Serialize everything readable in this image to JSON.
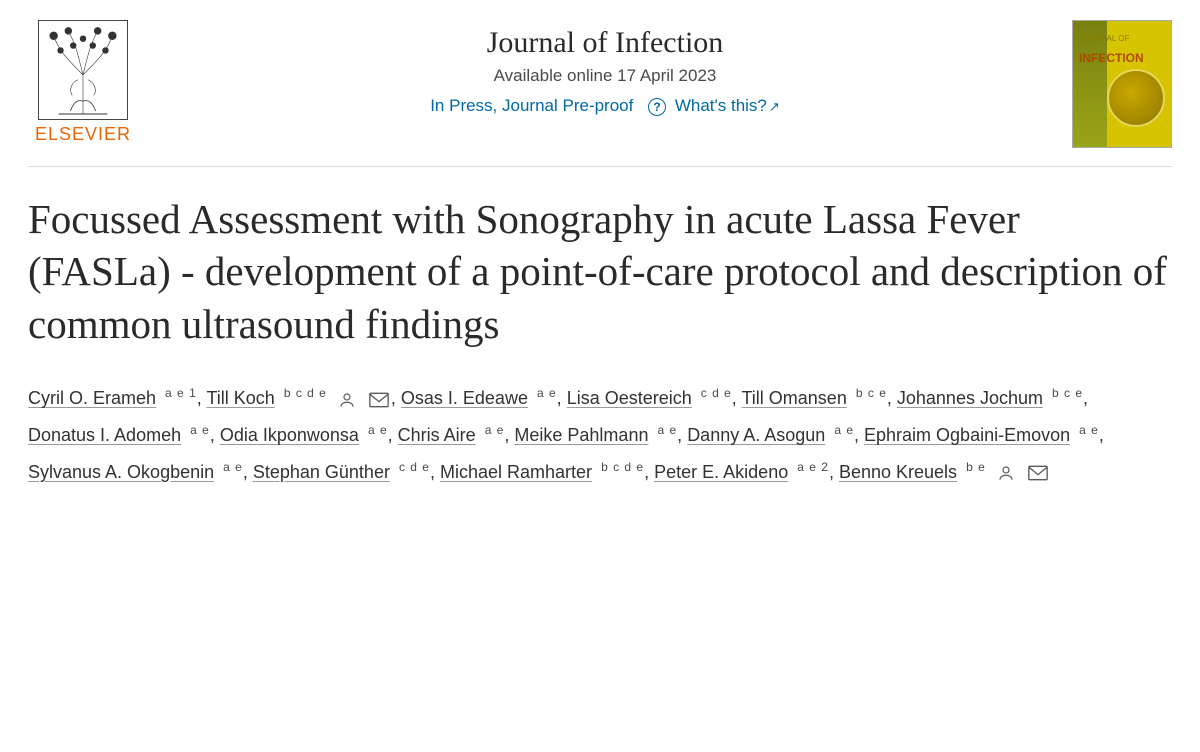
{
  "publisher": {
    "name": "ELSEVIER",
    "brand_color": "#eb6500"
  },
  "journal": {
    "name": "Journal of Infection",
    "available_online": "Available online 17 April 2023",
    "press_status": "In Press, Journal Pre-proof",
    "help_label": "What's this?"
  },
  "cover": {
    "bg_color": "#d7c400",
    "small_label": "JOURNAL OF",
    "big_label": "INFECTION"
  },
  "article": {
    "title": "Focussed Assessment with Sonography in acute Lassa Fever (FASLa) - development of a point-of-care protocol and description of common ultrasound findings"
  },
  "authors": [
    {
      "name": "Cyril O. Erameh",
      "affil": "a e 1"
    },
    {
      "name": "Till Koch",
      "affil": "b c d e",
      "corresponding": true
    },
    {
      "name": "Osas I. Edeawe",
      "affil": "a e"
    },
    {
      "name": "Lisa Oestereich",
      "affil": "c d e"
    },
    {
      "name": "Till Omansen",
      "affil": "b c e"
    },
    {
      "name": "Johannes Jochum",
      "affil": "b c e"
    },
    {
      "name": "Donatus I. Adomeh",
      "affil": "a e"
    },
    {
      "name": "Odia Ikponwonsa",
      "affil": "a e"
    },
    {
      "name": "Chris Aire",
      "affil": "a e"
    },
    {
      "name": "Meike Pahlmann",
      "affil": "a e"
    },
    {
      "name": "Danny A. Asogun",
      "affil": "a e"
    },
    {
      "name": "Ephraim Ogbaini-Emovon",
      "affil": "a e"
    },
    {
      "name": "Sylvanus A. Okogbenin",
      "affil": "a e"
    },
    {
      "name": "Stephan Günther",
      "affil": "c d e"
    },
    {
      "name": "Michael Ramharter",
      "affil": "b c d e"
    },
    {
      "name": "Peter E. Akideno",
      "affil": "a e 2"
    },
    {
      "name": "Benno Kreuels",
      "affil": "b e",
      "corresponding": true
    }
  ],
  "colors": {
    "link": "#0069a6",
    "text": "#2a2a2a",
    "rule": "#dcdcdc"
  }
}
